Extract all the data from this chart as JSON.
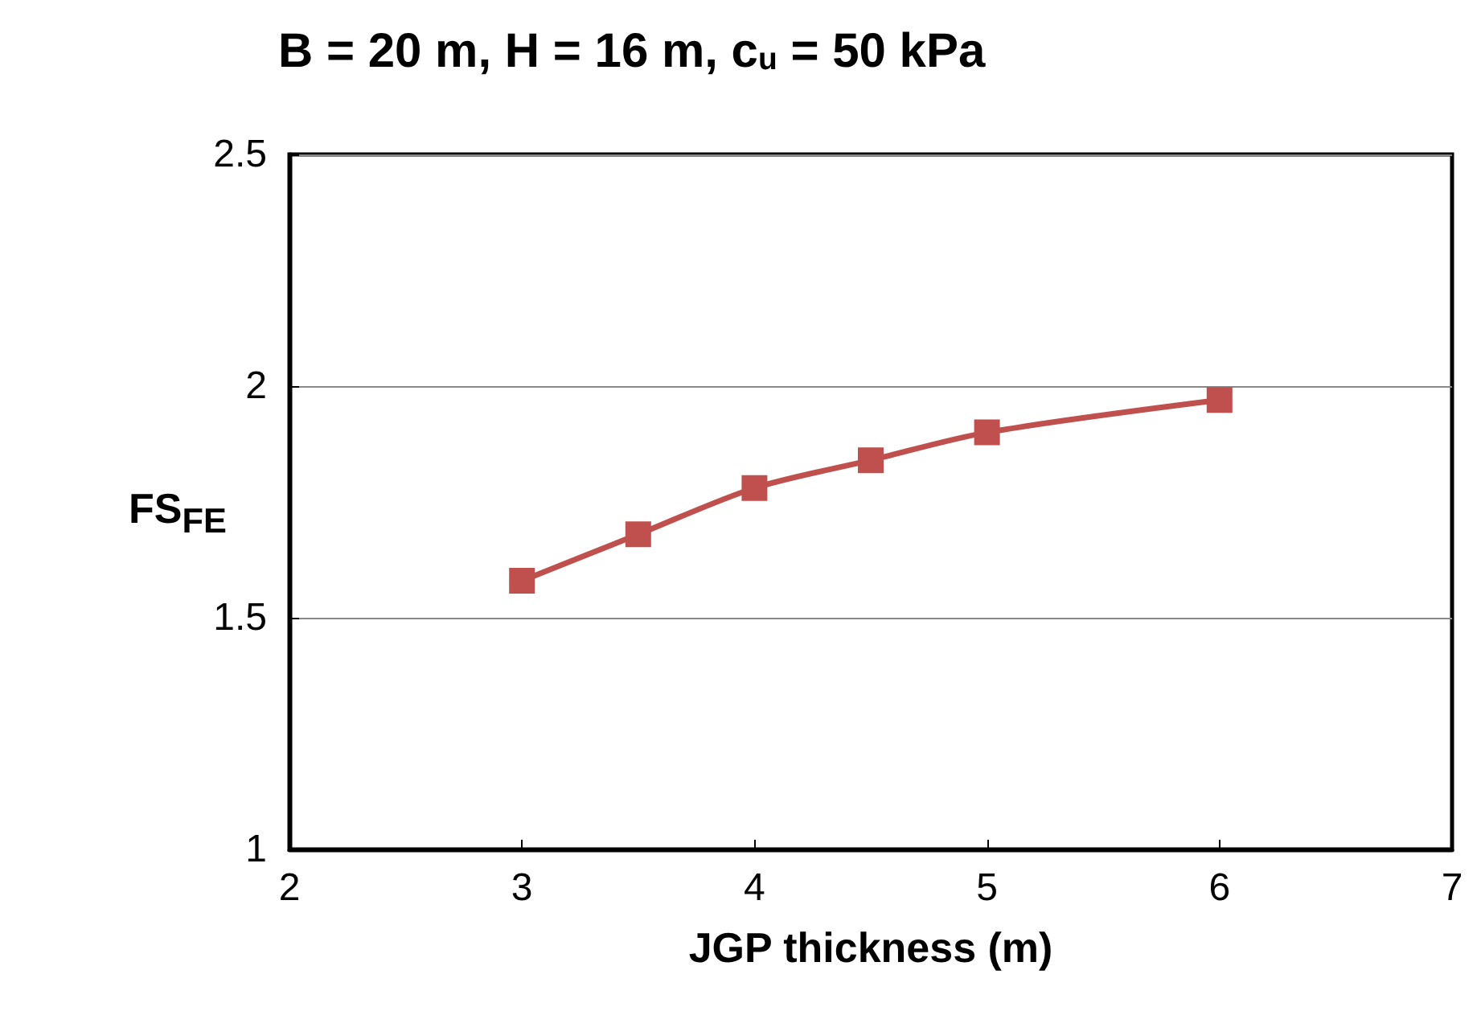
{
  "chart_data": {
    "type": "line",
    "title": "B = 20 m, H = 16 m, c$_{u}$ = 50 kPa",
    "xlabel": "JGP thickness (m)",
    "ylabel": "FS$_{FE}$",
    "x": [
      3,
      3.5,
      4,
      4.5,
      5,
      6
    ],
    "series": [
      {
        "color": "#c0504d",
        "values": [
          1.58,
          1.68,
          1.78,
          1.84,
          1.9,
          1.97
        ]
      }
    ],
    "xlim": [
      2,
      7
    ],
    "xticks": [
      2,
      3,
      4,
      5,
      6,
      7
    ],
    "ylim": [
      1,
      2.5
    ],
    "yticks": [
      1,
      1.5,
      2,
      2.5
    ],
    "grid": "y",
    "marker": "square",
    "line_style": "solid"
  }
}
